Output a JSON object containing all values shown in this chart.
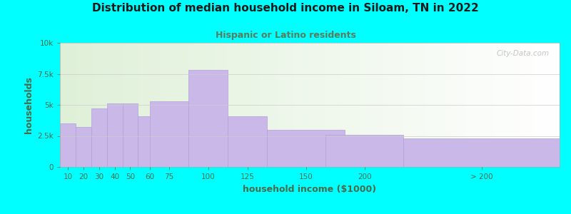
{
  "title": "Distribution of median household income in Siloam, TN in 2022",
  "subtitle": "Hispanic or Latino residents",
  "xlabel": "household income ($1000)",
  "ylabel": "households",
  "background_outer": "#00ffff",
  "background_inner_left": "#dff0d8",
  "background_inner_right": "#ffffff",
  "bar_color": "#c9b8e8",
  "bar_edge_color": "#b0a0d8",
  "title_color": "#1a1a1a",
  "subtitle_color": "#5c7a5c",
  "ylabel_color": "#4a6a4a",
  "xlabel_color": "#4a6a4a",
  "tick_label_color": "#4a6a4a",
  "grid_color": "#cccccc",
  "watermark_color": "#bbbbbb",
  "categories": [
    "10",
    "20",
    "30",
    "40",
    "50",
    "60",
    "75",
    "100",
    "125",
    "150",
    "200",
    "> 200"
  ],
  "values": [
    3500,
    3200,
    4700,
    5100,
    5100,
    4100,
    5300,
    7800,
    4100,
    3000,
    2600,
    2300
  ],
  "bar_widths": [
    10,
    10,
    10,
    10,
    10,
    15,
    25,
    25,
    25,
    50,
    50,
    100
  ],
  "bar_lefts": [
    5,
    15,
    25,
    35,
    45,
    55,
    62.5,
    87.5,
    112.5,
    137.5,
    175,
    225
  ],
  "xlim": [
    5,
    325
  ],
  "ylim": [
    0,
    10000
  ],
  "yticks": [
    0,
    2500,
    5000,
    7500,
    10000
  ],
  "ytick_labels": [
    "0",
    "2.5k",
    "5k",
    "7.5k",
    "10k"
  ],
  "watermark": "City-Data.com"
}
